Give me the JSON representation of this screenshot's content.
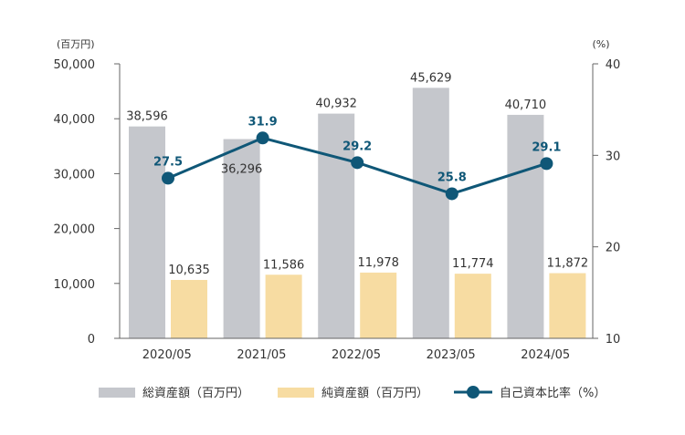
{
  "chart_data": {
    "type": "bar",
    "categories": [
      "2020/05",
      "2021/05",
      "2022/05",
      "2023/05",
      "2024/05"
    ],
    "series": [
      {
        "name": "総資産額（百万円）",
        "type": "bar",
        "axis": "left",
        "values": [
          38596,
          36296,
          40932,
          45629,
          40710
        ],
        "labels": [
          "38,596",
          "36,296",
          "40,932",
          "45,629",
          "40,710"
        ],
        "color": "#c5c7cc"
      },
      {
        "name": "純資産額（百万円）",
        "type": "bar",
        "axis": "left",
        "values": [
          10635,
          11586,
          11978,
          11774,
          11872
        ],
        "labels": [
          "10,635",
          "11,586",
          "11,978",
          "11,774",
          "11,872"
        ],
        "color": "#f7dca2"
      },
      {
        "name": "自己資本比率（%）",
        "type": "line",
        "axis": "right",
        "values": [
          27.5,
          31.9,
          29.2,
          25.8,
          29.1
        ],
        "labels": [
          "27.5",
          "31.9",
          "29.2",
          "25.8",
          "29.1"
        ],
        "color": "#0f5777"
      }
    ],
    "y_left": {
      "unit": "(百万円)",
      "range": [
        0,
        50000
      ],
      "ticks": [
        "0",
        "10,000",
        "20,000",
        "30,000",
        "40,000",
        "50,000"
      ],
      "tick_values": [
        0,
        10000,
        20000,
        30000,
        40000,
        50000
      ]
    },
    "y_right": {
      "unit": "(%)",
      "range": [
        10,
        40
      ],
      "ticks": [
        "10",
        "20",
        "30",
        "40"
      ],
      "tick_values": [
        10,
        20,
        30,
        40
      ]
    },
    "grid": false,
    "legend": "bottom"
  }
}
